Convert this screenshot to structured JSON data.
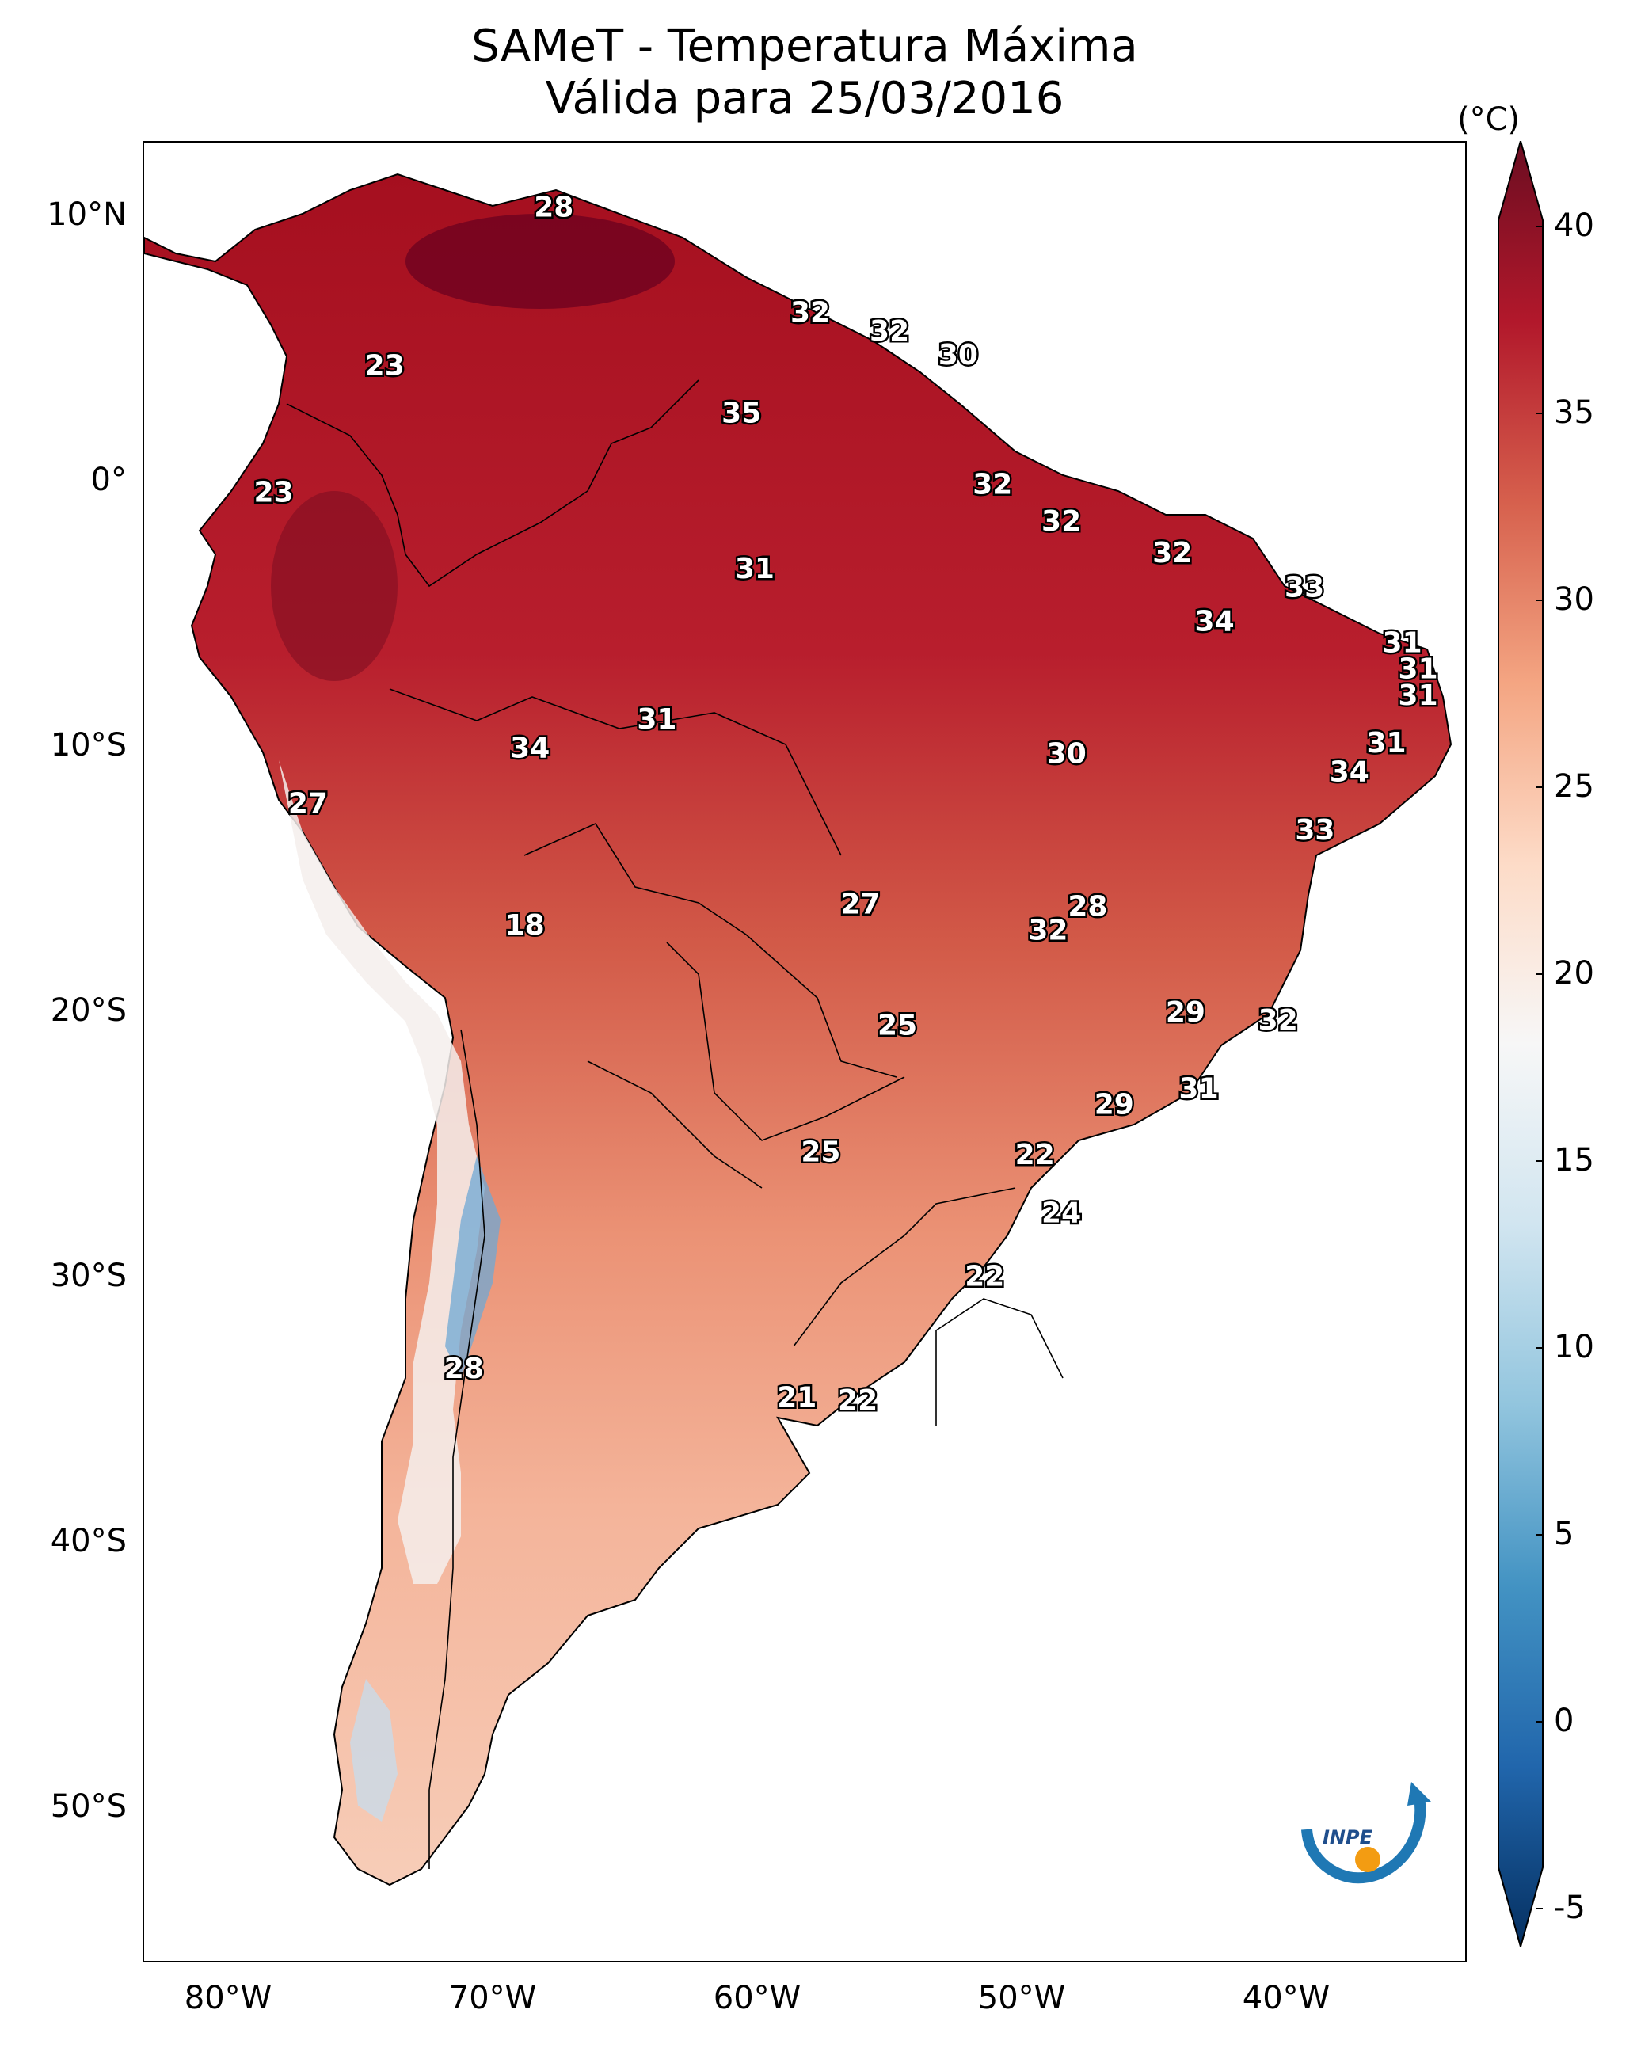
{
  "title_line1": "SAMeT - Temperatura Máxima",
  "title_line2": "Válida para 25/03/2016",
  "colorbar": {
    "unit": "(°C)",
    "ticks": [
      "40",
      "35",
      "30",
      "25",
      "20",
      "15",
      "10",
      "5",
      "0",
      "-5"
    ],
    "colors": [
      "#6b0d21",
      "#b2182b",
      "#d6604d",
      "#f4a582",
      "#fddbc7",
      "#f7f7f7",
      "#d1e5f0",
      "#92c5de",
      "#4393c3",
      "#2166ac",
      "#053061"
    ]
  },
  "axes": {
    "lat_labels": [
      "10°N",
      "0°",
      "10°S",
      "20°S",
      "30°S",
      "40°S",
      "50°S"
    ],
    "lon_labels": [
      "80°W",
      "70°W",
      "60°W",
      "50°W",
      "40°W"
    ]
  },
  "temperature_labels": [
    {
      "value": "28",
      "lon": -67.5,
      "lat": 10.5
    },
    {
      "value": "32",
      "lon": -57.8,
      "lat": 6.5
    },
    {
      "value": "32",
      "lon": -54.8,
      "lat": 5.8
    },
    {
      "value": "30",
      "lon": -52.2,
      "lat": 4.9
    },
    {
      "value": "23",
      "lon": -73.9,
      "lat": 4.5
    },
    {
      "value": "35",
      "lon": -60.4,
      "lat": 2.7
    },
    {
      "value": "23",
      "lon": -78.1,
      "lat": -0.3
    },
    {
      "value": "32",
      "lon": -50.9,
      "lat": 0.0
    },
    {
      "value": "32",
      "lon": -48.3,
      "lat": -1.4
    },
    {
      "value": "32",
      "lon": -44.1,
      "lat": -2.6
    },
    {
      "value": "31",
      "lon": -59.9,
      "lat": -3.2
    },
    {
      "value": "33",
      "lon": -39.1,
      "lat": -3.9
    },
    {
      "value": "34",
      "lon": -42.5,
      "lat": -5.2
    },
    {
      "value": "31",
      "lon": -35.4,
      "lat": -6.0
    },
    {
      "value": "31",
      "lon": -34.8,
      "lat": -7.0
    },
    {
      "value": "31",
      "lon": -34.8,
      "lat": -8.0
    },
    {
      "value": "31",
      "lon": -63.6,
      "lat": -8.9
    },
    {
      "value": "31",
      "lon": -36.0,
      "lat": -9.8
    },
    {
      "value": "34",
      "lon": -68.4,
      "lat": -10.0
    },
    {
      "value": "30",
      "lon": -48.1,
      "lat": -10.2
    },
    {
      "value": "34",
      "lon": -37.4,
      "lat": -10.9
    },
    {
      "value": "27",
      "lon": -76.8,
      "lat": -12.1
    },
    {
      "value": "33",
      "lon": -38.7,
      "lat": -13.1
    },
    {
      "value": "27",
      "lon": -55.9,
      "lat": -15.9
    },
    {
      "value": "28",
      "lon": -47.3,
      "lat": -16.0
    },
    {
      "value": "32",
      "lon": -48.8,
      "lat": -16.9
    },
    {
      "value": "18",
      "lon": -68.6,
      "lat": -16.7
    },
    {
      "value": "29",
      "lon": -43.6,
      "lat": -20.0
    },
    {
      "value": "25",
      "lon": -54.5,
      "lat": -20.5
    },
    {
      "value": "32",
      "lon": -40.1,
      "lat": -20.3
    },
    {
      "value": "31",
      "lon": -43.1,
      "lat": -22.9
    },
    {
      "value": "29",
      "lon": -46.3,
      "lat": -23.5
    },
    {
      "value": "25",
      "lon": -57.4,
      "lat": -25.3
    },
    {
      "value": "22",
      "lon": -49.3,
      "lat": -25.4
    },
    {
      "value": "24",
      "lon": -48.3,
      "lat": -27.6
    },
    {
      "value": "22",
      "lon": -51.2,
      "lat": -30.0
    },
    {
      "value": "28",
      "lon": -70.9,
      "lat": -33.5
    },
    {
      "value": "21",
      "lon": -58.3,
      "lat": -34.6
    },
    {
      "value": "22",
      "lon": -56.0,
      "lat": -34.7
    }
  ],
  "logo": {
    "text": "INPE"
  }
}
